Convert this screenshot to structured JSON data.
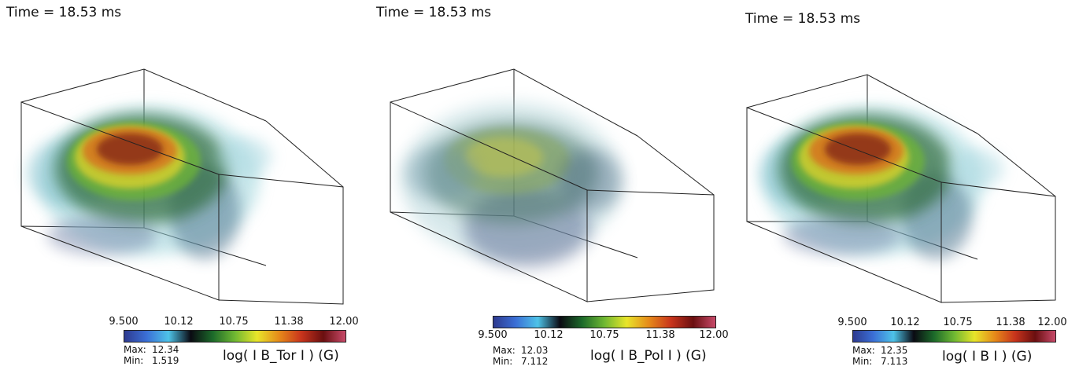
{
  "colors": {
    "scale": [
      "#2e3a8f",
      "#3b6fd6",
      "#4ec3e8",
      "#0a0a12",
      "#1c6a2a",
      "#6fb832",
      "#e8e52a",
      "#e68a1a",
      "#c8341c",
      "#6a0f10",
      "#c84a6a"
    ]
  },
  "panels": [
    {
      "time": "Time = 18.53 ms",
      "scale_ticks": [
        "9.500",
        "10.12",
        "10.75",
        "11.38",
        "12.00"
      ],
      "max_label": "Max:",
      "max_value": "12.34",
      "min_label": "Min:",
      "min_value": "1.519",
      "variable": "log( I B_Tor I ) (G)"
    },
    {
      "time": "Time = 18.53 ms",
      "scale_ticks": [
        "9.500",
        "10.12",
        "10.75",
        "11.38",
        "12.00"
      ],
      "max_label": "Max:",
      "max_value": "12.03",
      "min_label": "Min:",
      "min_value": "7.112",
      "variable": "log( I B_Pol I ) (G)"
    },
    {
      "time": "Time = 18.53 ms",
      "scale_ticks": [
        "9.500",
        "10.12",
        "10.75",
        "11.38",
        "12.00"
      ],
      "max_label": "Max:",
      "max_value": "12.35",
      "min_label": "Min:",
      "min_value": "7.113",
      "variable": "log( I B I ) (G)"
    }
  ]
}
